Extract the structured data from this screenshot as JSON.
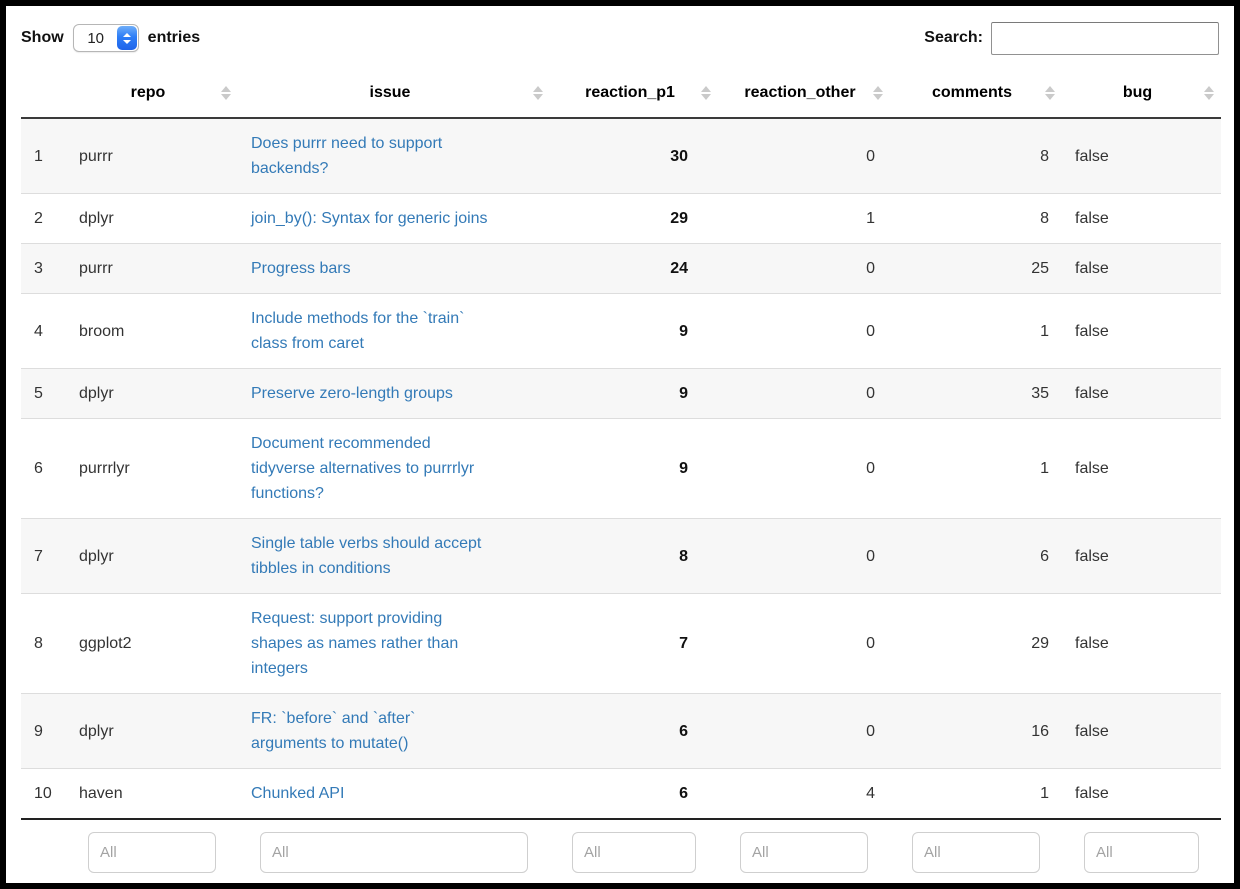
{
  "controls": {
    "show_label": "Show",
    "page_length": "10",
    "entries_label": "entries",
    "search_label": "Search:",
    "search_value": ""
  },
  "table": {
    "filter_placeholder": "All",
    "columns": [
      {
        "label": "",
        "sortable": false
      },
      {
        "label": "repo",
        "sortable": true
      },
      {
        "label": "issue",
        "sortable": true
      },
      {
        "label": "reaction_p1",
        "sortable": true
      },
      {
        "label": "reaction_other",
        "sortable": true
      },
      {
        "label": "comments",
        "sortable": true
      },
      {
        "label": "bug",
        "sortable": true
      }
    ],
    "rows": [
      {
        "num": "1",
        "repo": "purrr",
        "issue": "Does purrr need to support backends?",
        "reaction_p1": "30",
        "reaction_other": "0",
        "comments": "8",
        "bug": "false"
      },
      {
        "num": "2",
        "repo": "dplyr",
        "issue": "join_by(): Syntax for generic joins",
        "reaction_p1": "29",
        "reaction_other": "1",
        "comments": "8",
        "bug": "false"
      },
      {
        "num": "3",
        "repo": "purrr",
        "issue": "Progress bars",
        "reaction_p1": "24",
        "reaction_other": "0",
        "comments": "25",
        "bug": "false"
      },
      {
        "num": "4",
        "repo": "broom",
        "issue": "Include methods for the `train` class from caret",
        "reaction_p1": "9",
        "reaction_other": "0",
        "comments": "1",
        "bug": "false"
      },
      {
        "num": "5",
        "repo": "dplyr",
        "issue": "Preserve zero-length groups",
        "reaction_p1": "9",
        "reaction_other": "0",
        "comments": "35",
        "bug": "false"
      },
      {
        "num": "6",
        "repo": "purrrlyr",
        "issue": "Document recommended tidyverse alternatives to purrrlyr functions?",
        "reaction_p1": "9",
        "reaction_other": "0",
        "comments": "1",
        "bug": "false"
      },
      {
        "num": "7",
        "repo": "dplyr",
        "issue": "Single table verbs should accept tibbles in conditions",
        "reaction_p1": "8",
        "reaction_other": "0",
        "comments": "6",
        "bug": "false"
      },
      {
        "num": "8",
        "repo": "ggplot2",
        "issue": "Request: support providing shapes as names rather than integers",
        "reaction_p1": "7",
        "reaction_other": "0",
        "comments": "29",
        "bug": "false"
      },
      {
        "num": "9",
        "repo": "dplyr",
        "issue": "FR: `before` and `after` arguments to mutate()",
        "reaction_p1": "6",
        "reaction_other": "0",
        "comments": "16",
        "bug": "false"
      },
      {
        "num": "10",
        "repo": "haven",
        "issue": "Chunked API",
        "reaction_p1": "6",
        "reaction_other": "4",
        "comments": "1",
        "bug": "false"
      }
    ]
  },
  "colors": {
    "link": "#337ab7",
    "select_accent": "#2d7ef7",
    "stripe": "#f7f7f7",
    "sort_icon": "#cacaca"
  }
}
